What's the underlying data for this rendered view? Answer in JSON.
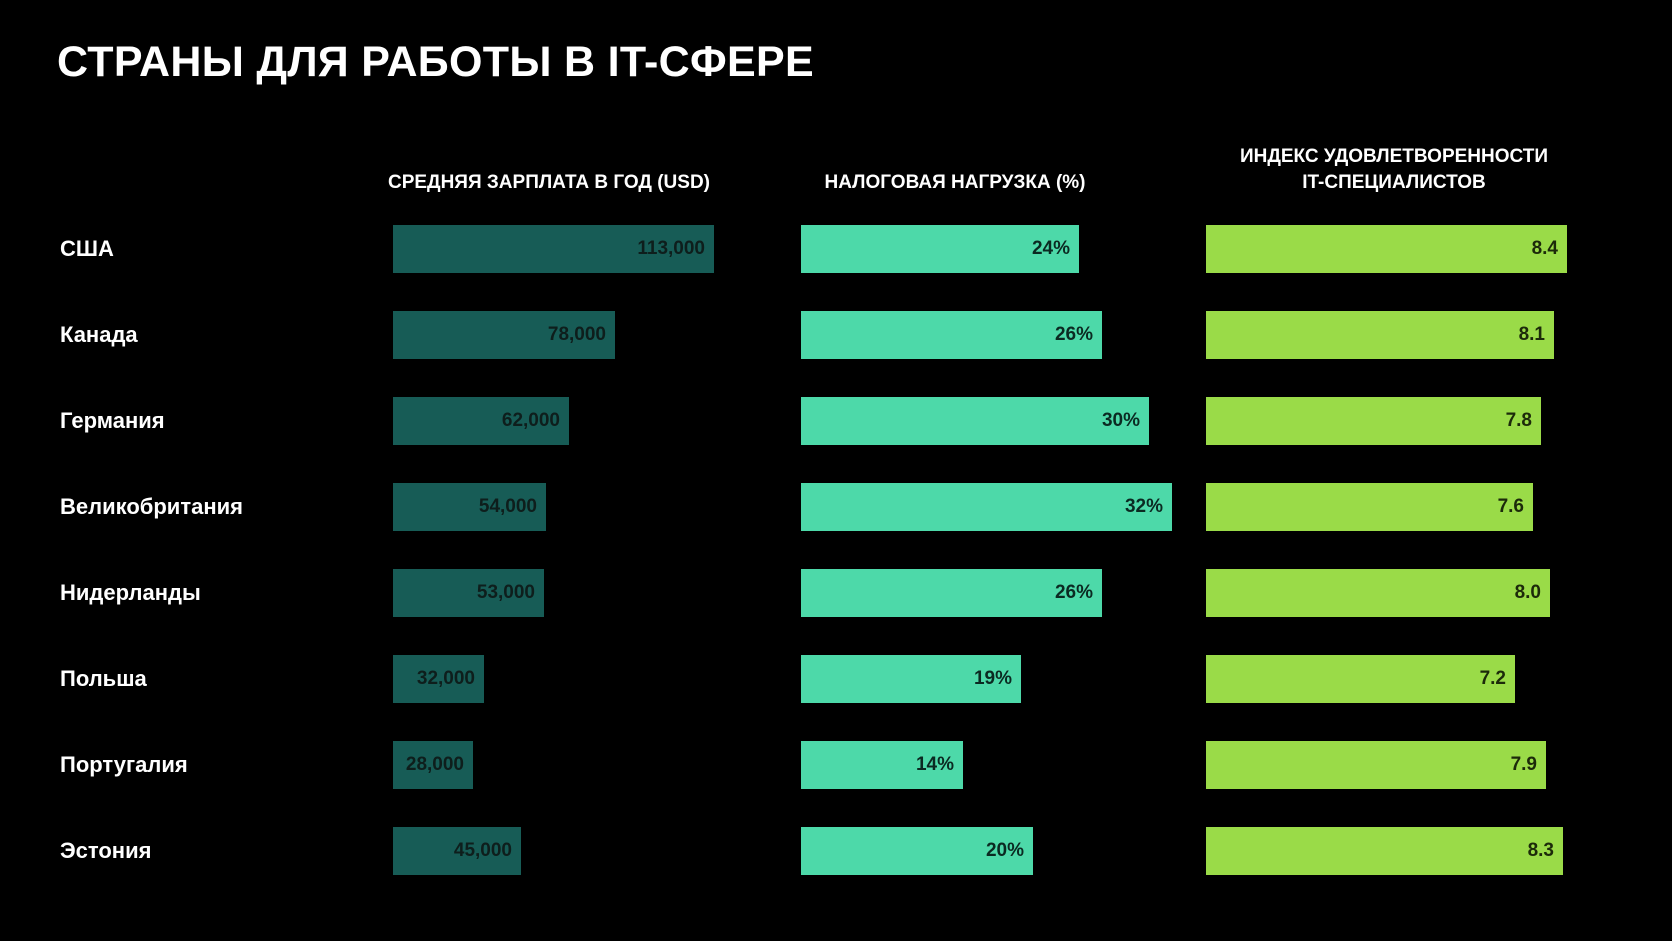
{
  "chart_data": {
    "type": "bar",
    "title": "СТРАНЫ ДЛЯ РАБОТЫ В IT-СФЕРЕ",
    "categories": [
      "США",
      "Канада",
      "Германия",
      "Великобритания",
      "Нидерланды",
      "Польша",
      "Португалия",
      "Эстония"
    ],
    "series": [
      {
        "name": "СРЕДНЯЯ ЗАРПЛАТА В ГОД (USD)",
        "values": [
          113000,
          78000,
          62000,
          54000,
          53000,
          32000,
          28000,
          45000
        ],
        "labels": [
          "113,000",
          "78,000",
          "62,000",
          "54,000",
          "53,000",
          "32,000",
          "28,000",
          "45,000"
        ],
        "color": "#175C56",
        "text_color": "#0E1E1C"
      },
      {
        "name": "НАЛОГОВАЯ НАГРУЗКА (%)",
        "values": [
          24,
          26,
          30,
          32,
          26,
          19,
          14,
          20
        ],
        "labels": [
          "24%",
          "26%",
          "30%",
          "32%",
          "26%",
          "19%",
          "14%",
          "20%"
        ],
        "color": "#4DD9A9",
        "text_color": "#0B2A22"
      },
      {
        "name": "ИНДЕКС УДОВЛЕТВОРЕННОСТИ IT-СПЕЦИАЛИСТОВ",
        "header_lines": [
          "ИНДЕКС УДОВЛЕТВОРЕННОСТИ",
          "IT-СПЕЦИАЛИСТОВ"
        ],
        "values": [
          8.4,
          8.1,
          7.8,
          7.6,
          8.0,
          7.2,
          7.9,
          8.3
        ],
        "labels": [
          "8.4",
          "8.1",
          "7.8",
          "7.6",
          "8.0",
          "7.2",
          "7.9",
          "8.3"
        ],
        "color": "#9ADB48",
        "text_color": "#1C2A0A"
      }
    ],
    "background": "#000000",
    "legend": "none",
    "grid": false
  }
}
